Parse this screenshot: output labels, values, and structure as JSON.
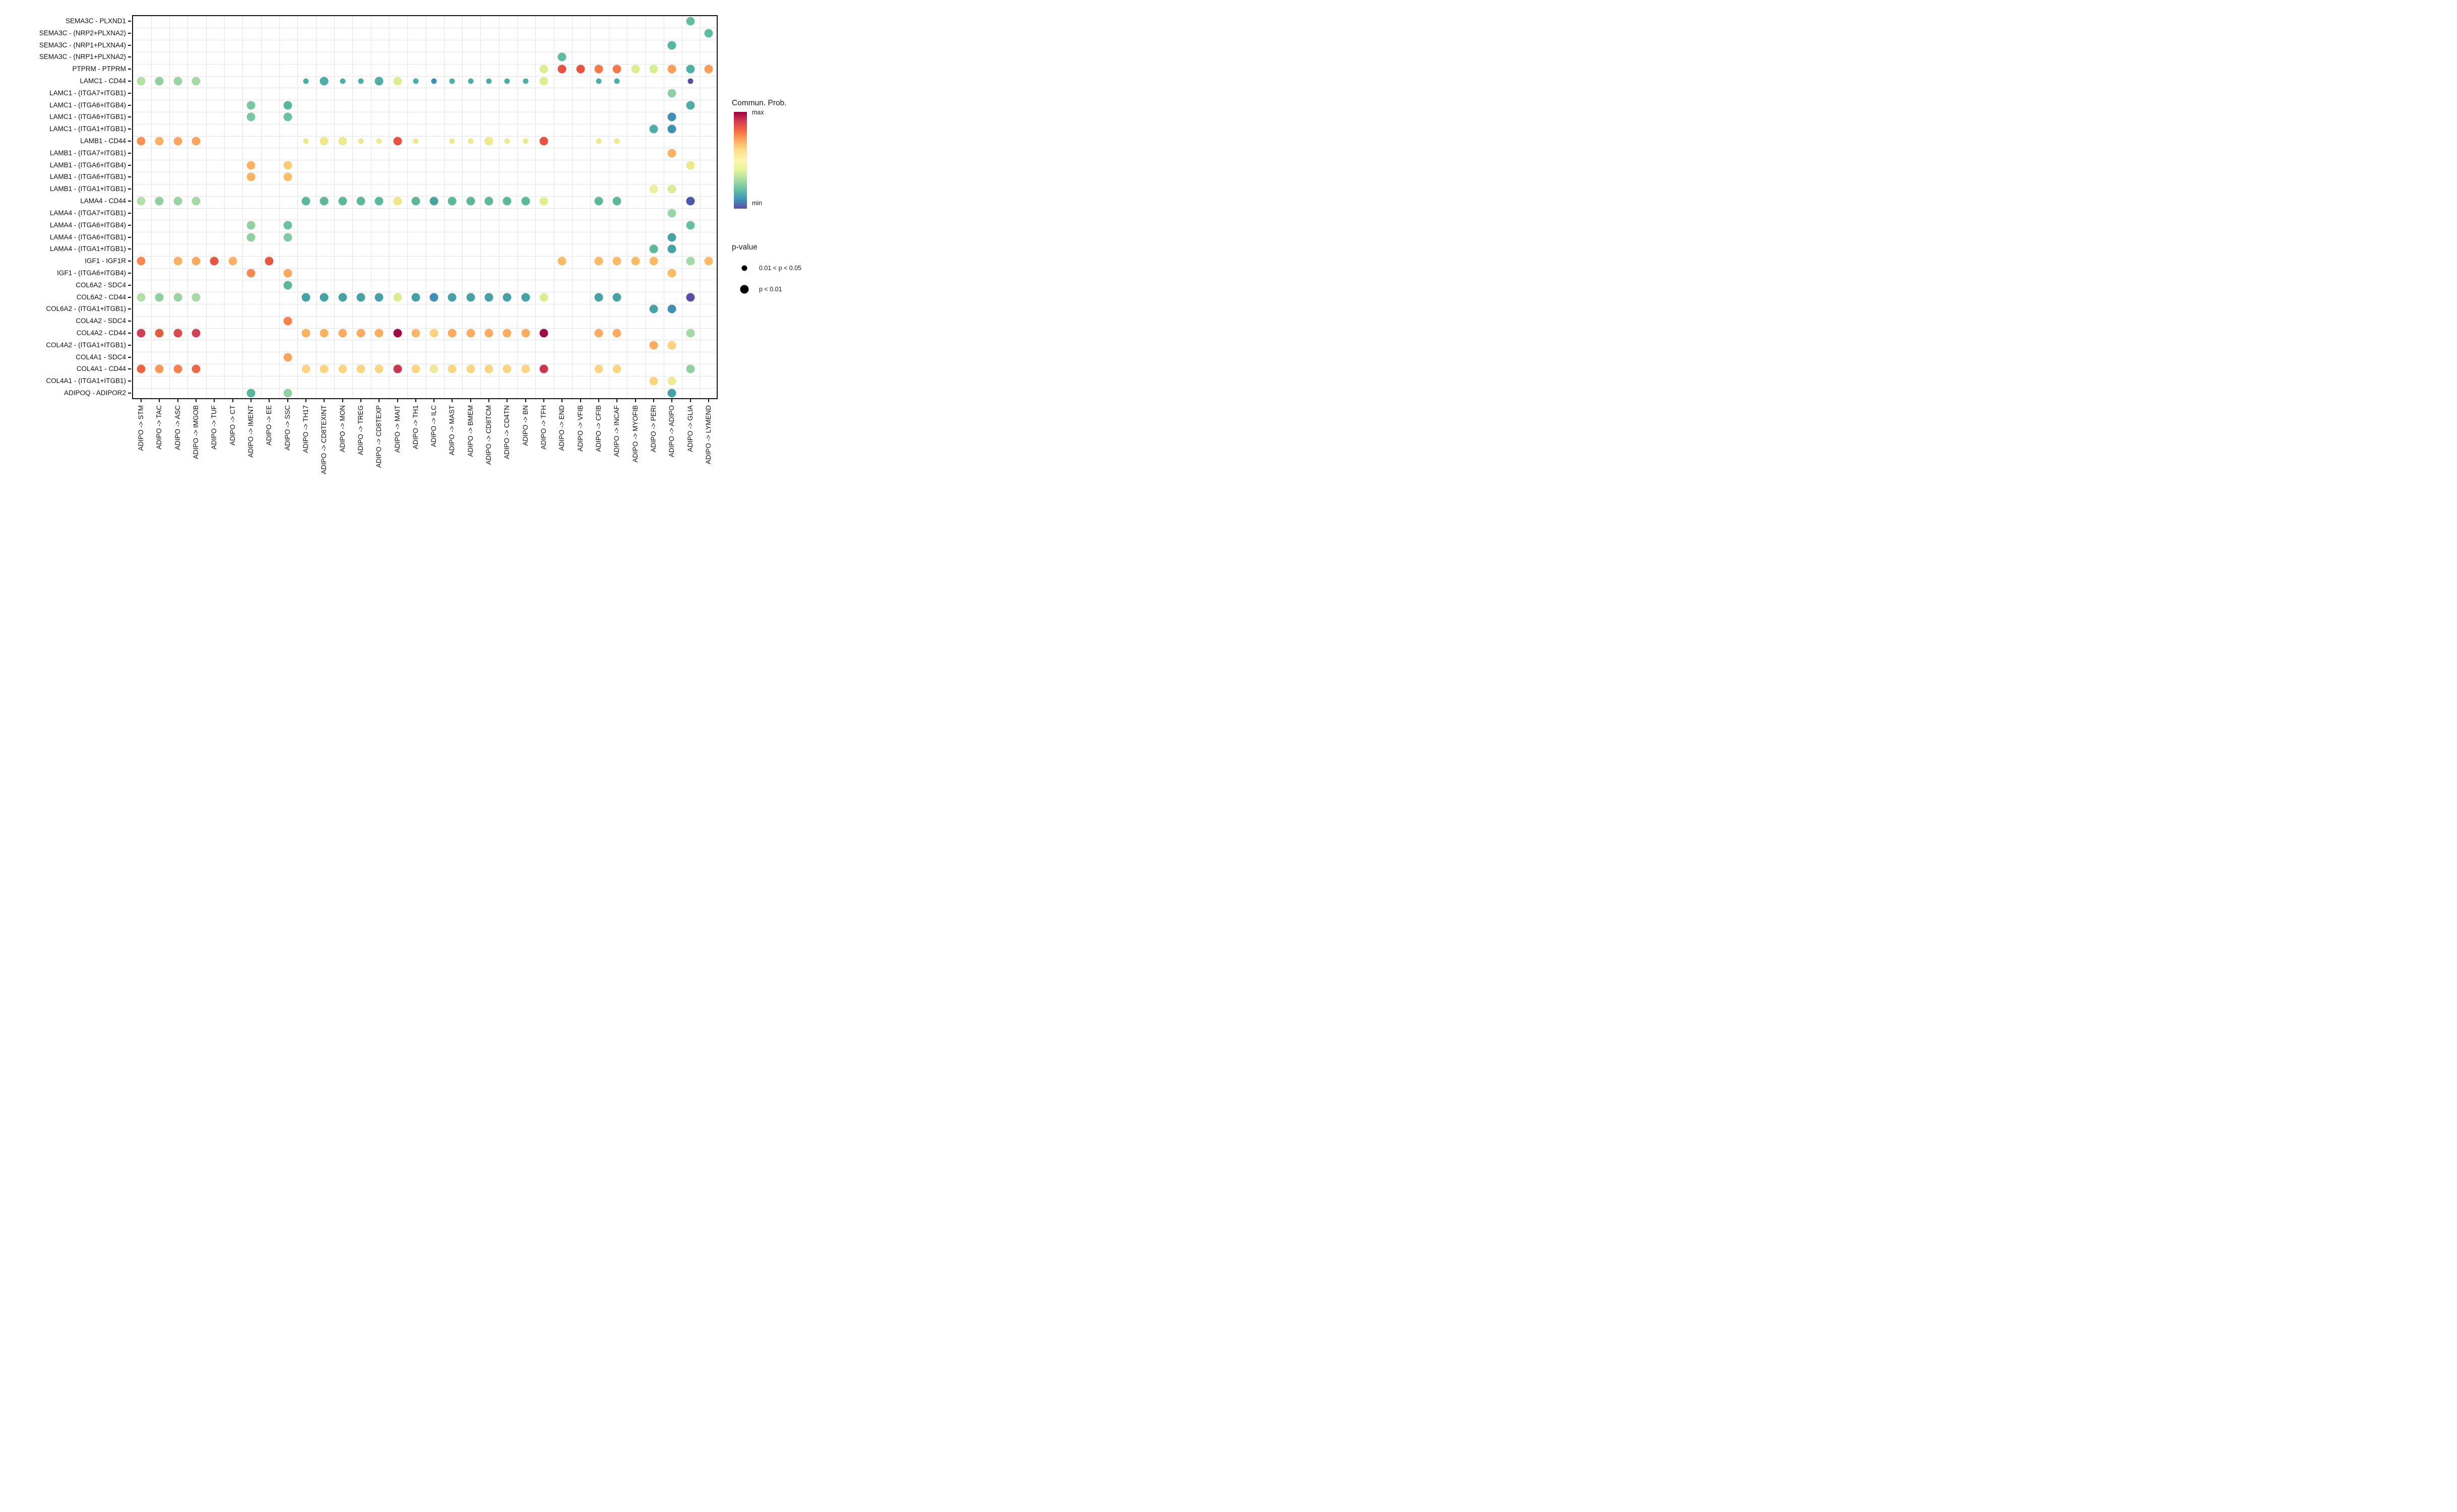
{
  "chart_data": {
    "type": "scatter",
    "subtype": "dotplot-bubble",
    "title": "",
    "xlabel": "",
    "ylabel": "",
    "grid": true,
    "x_tick_rotation": 90,
    "x_categories": [
      "ADIPO -> STM",
      "ADIPO -> TAC",
      "ADIPO -> ASC",
      "ADIPO -> IMGOB",
      "ADIPO -> TUF",
      "ADIPO -> CT",
      "ADIPO -> IMENT",
      "ADIPO -> EE",
      "ADIPO -> SSC",
      "ADIPO -> TH17",
      "ADIPO -> CD8TEXINT",
      "ADIPO -> MON",
      "ADIPO -> TREG",
      "ADIPO -> CD8TEXP",
      "ADIPO -> MAIT",
      "ADIPO -> TH1",
      "ADIPO -> ILC",
      "ADIPO -> MAST",
      "ADIPO -> BMEM",
      "ADIPO -> CD8TCM",
      "ADIPO -> CD4TN",
      "ADIPO -> BN",
      "ADIPO -> TFH",
      "ADIPO -> END",
      "ADIPO -> VFIB",
      "ADIPO -> CFIB",
      "ADIPO -> INCAF",
      "ADIPO -> MYOFIB",
      "ADIPO -> PERI",
      "ADIPO -> ADIPO",
      "ADIPO -> GLIA",
      "ADIPO -> LYMEND"
    ],
    "y_categories": [
      "SEMA3C - PLXND1",
      "SEMA3C - (NRP2+PLXNA2)",
      "SEMA3C - (NRP1+PLXNA4)",
      "SEMA3C - (NRP1+PLXNA2)",
      "PTPRM - PTPRM",
      "LAMC1 - CD44",
      "LAMC1 - (ITGA7+ITGB1)",
      "LAMC1 - (ITGA6+ITGB4)",
      "LAMC1 - (ITGA6+ITGB1)",
      "LAMC1 - (ITGA1+ITGB1)",
      "LAMB1 - CD44",
      "LAMB1 - (ITGA7+ITGB1)",
      "LAMB1 - (ITGA6+ITGB4)",
      "LAMB1 - (ITGA6+ITGB1)",
      "LAMB1 - (ITGA1+ITGB1)",
      "LAMA4 - CD44",
      "LAMA4 - (ITGA7+ITGB1)",
      "LAMA4 - (ITGA6+ITGB4)",
      "LAMA4 - (ITGA6+ITGB1)",
      "LAMA4 - (ITGA1+ITGB1)",
      "IGF1 - IGF1R",
      "IGF1 - (ITGA6+ITGB4)",
      "COL6A2 - SDC4",
      "COL6A2 - CD44",
      "COL6A2 - (ITGA1+ITGB1)",
      "COL4A2 - SDC4",
      "COL4A2 - CD44",
      "COL4A2 - (ITGA1+ITGB1)",
      "COL4A1 - SDC4",
      "COL4A1 - CD44",
      "COL4A1 - (ITGA1+ITGB1)",
      "ADIPOQ - ADIPOR2"
    ],
    "size_classes": {
      "1": "0.01 < p < 0.05",
      "2": "p < 0.01"
    },
    "color_encoding": "Commun. Prob. (min to max, Spectral reversed)",
    "dots": [
      [
        0,
        30,
        "#63BE9D",
        2
      ],
      [
        1,
        31,
        "#5FBCA0",
        2
      ],
      [
        2,
        29,
        "#57B69E",
        2
      ],
      [
        3,
        23,
        "#5FBCA2",
        2
      ],
      [
        4,
        22,
        "#DCEE91",
        2
      ],
      [
        4,
        23,
        "#E65340",
        2
      ],
      [
        4,
        24,
        "#E65340",
        2
      ],
      [
        4,
        25,
        "#F4794A",
        2
      ],
      [
        4,
        26,
        "#F4794A",
        2
      ],
      [
        4,
        27,
        "#DCEE91",
        2
      ],
      [
        4,
        28,
        "#D9ED92",
        2
      ],
      [
        4,
        29,
        "#FB9D58",
        2
      ],
      [
        4,
        30,
        "#4FAEA3",
        2
      ],
      [
        4,
        31,
        "#FB9D58",
        2
      ],
      [
        5,
        0,
        "#B4E0A5",
        2
      ],
      [
        5,
        1,
        "#90CF9F",
        2
      ],
      [
        5,
        2,
        "#99D4A2",
        2
      ],
      [
        5,
        3,
        "#A6DAA5",
        2
      ],
      [
        5,
        9,
        "#4FAEA3",
        1
      ],
      [
        5,
        10,
        "#4FAEA3",
        2
      ],
      [
        5,
        11,
        "#4FAEA3",
        1
      ],
      [
        5,
        12,
        "#4FAEA3",
        1
      ],
      [
        5,
        13,
        "#4FAEA3",
        2
      ],
      [
        5,
        14,
        "#DCEE91",
        2
      ],
      [
        5,
        15,
        "#4FAEA3",
        1
      ],
      [
        5,
        16,
        "#3F90B5",
        1
      ],
      [
        5,
        17,
        "#4FAEA3",
        1
      ],
      [
        5,
        18,
        "#4FAEA3",
        1
      ],
      [
        5,
        19,
        "#4FAEA3",
        1
      ],
      [
        5,
        20,
        "#4FAEA3",
        1
      ],
      [
        5,
        21,
        "#4FAEA3",
        1
      ],
      [
        5,
        22,
        "#DCEE91",
        2
      ],
      [
        5,
        25,
        "#4FAEA3",
        1
      ],
      [
        5,
        26,
        "#4FAEA3",
        1
      ],
      [
        5,
        30,
        "#5B4DA3",
        1
      ],
      [
        6,
        29,
        "#90CF9F",
        2
      ],
      [
        7,
        6,
        "#79C7A3",
        2
      ],
      [
        7,
        8,
        "#57B69E",
        2
      ],
      [
        7,
        30,
        "#4FAEA3",
        2
      ],
      [
        8,
        6,
        "#79C7A3",
        2
      ],
      [
        8,
        8,
        "#6CC2A0",
        2
      ],
      [
        8,
        29,
        "#3F90B5",
        2
      ],
      [
        9,
        28,
        "#4FAEA3",
        2
      ],
      [
        9,
        29,
        "#3F90B5",
        2
      ],
      [
        10,
        0,
        "#F79453",
        2
      ],
      [
        10,
        1,
        "#FBB164",
        2
      ],
      [
        10,
        2,
        "#FAA75D",
        2
      ],
      [
        10,
        3,
        "#FAA55C",
        2
      ],
      [
        10,
        9,
        "#EDE98C",
        1
      ],
      [
        10,
        10,
        "#EDE98C",
        2
      ],
      [
        10,
        11,
        "#EDE98C",
        2
      ],
      [
        10,
        12,
        "#EDE98C",
        1
      ],
      [
        10,
        13,
        "#EDE98C",
        1
      ],
      [
        10,
        14,
        "#E65340",
        2
      ],
      [
        10,
        15,
        "#EDE98C",
        1
      ],
      [
        10,
        17,
        "#EDE98C",
        1
      ],
      [
        10,
        18,
        "#EDE98C",
        1
      ],
      [
        10,
        19,
        "#EDE98C",
        2
      ],
      [
        10,
        20,
        "#EDE98C",
        1
      ],
      [
        10,
        21,
        "#EDE98C",
        1
      ],
      [
        10,
        22,
        "#E65340",
        2
      ],
      [
        10,
        25,
        "#EDE98C",
        1
      ],
      [
        10,
        26,
        "#EDE98C",
        1
      ],
      [
        11,
        29,
        "#FBB164",
        2
      ],
      [
        12,
        6,
        "#FBB164",
        2
      ],
      [
        12,
        8,
        "#FACD74",
        2
      ],
      [
        12,
        30,
        "#EDE98C",
        2
      ],
      [
        13,
        6,
        "#FBB164",
        2
      ],
      [
        13,
        8,
        "#FBBD68",
        2
      ],
      [
        14,
        28,
        "#EDEF9C",
        2
      ],
      [
        14,
        29,
        "#D7EC95",
        2
      ],
      [
        15,
        0,
        "#B4E0A5",
        2
      ],
      [
        15,
        1,
        "#90CF9F",
        2
      ],
      [
        15,
        2,
        "#99D4A2",
        2
      ],
      [
        15,
        3,
        "#A6DAA5",
        2
      ],
      [
        15,
        9,
        "#5BB89B",
        2
      ],
      [
        15,
        10,
        "#5BB89B",
        2
      ],
      [
        15,
        11,
        "#5BB89B",
        2
      ],
      [
        15,
        12,
        "#5BB89B",
        2
      ],
      [
        15,
        13,
        "#5BB89B",
        2
      ],
      [
        15,
        14,
        "#EDE88A",
        2
      ],
      [
        15,
        15,
        "#5BB89B",
        2
      ],
      [
        15,
        16,
        "#47A2A2",
        2
      ],
      [
        15,
        17,
        "#5BB89B",
        2
      ],
      [
        15,
        18,
        "#5BB89B",
        2
      ],
      [
        15,
        19,
        "#5BB89B",
        2
      ],
      [
        15,
        20,
        "#5BB89B",
        2
      ],
      [
        15,
        21,
        "#5BB89B",
        2
      ],
      [
        15,
        22,
        "#E3EE8D",
        2
      ],
      [
        15,
        25,
        "#5BB89B",
        2
      ],
      [
        15,
        26,
        "#5BB89B",
        2
      ],
      [
        15,
        30,
        "#4A58A8",
        2
      ],
      [
        16,
        29,
        "#9AD6A5",
        2
      ],
      [
        17,
        6,
        "#90D0A1",
        2
      ],
      [
        17,
        8,
        "#6CC2A0",
        2
      ],
      [
        17,
        30,
        "#66BF9F",
        2
      ],
      [
        18,
        6,
        "#90D0A1",
        2
      ],
      [
        18,
        8,
        "#80CBA3",
        2
      ],
      [
        18,
        29,
        "#47A2A6",
        2
      ],
      [
        19,
        28,
        "#5BB89B",
        2
      ],
      [
        19,
        29,
        "#47A2A6",
        2
      ],
      [
        20,
        0,
        "#F68B51",
        2
      ],
      [
        20,
        2,
        "#FBB164",
        2
      ],
      [
        20,
        3,
        "#FAA85E",
        2
      ],
      [
        20,
        4,
        "#E65740",
        2
      ],
      [
        20,
        5,
        "#FBB164",
        2
      ],
      [
        20,
        7,
        "#E65740",
        2
      ],
      [
        20,
        23,
        "#FBBA66",
        2
      ],
      [
        20,
        25,
        "#FBBA66",
        2
      ],
      [
        20,
        26,
        "#FBBA66",
        2
      ],
      [
        20,
        27,
        "#FBBA66",
        2
      ],
      [
        20,
        28,
        "#FBBA66",
        2
      ],
      [
        20,
        30,
        "#A2D9A4",
        2
      ],
      [
        20,
        31,
        "#FBBA66",
        2
      ],
      [
        21,
        6,
        "#F68B51",
        2
      ],
      [
        21,
        8,
        "#FAA85E",
        2
      ],
      [
        21,
        29,
        "#FBBA66",
        2
      ],
      [
        22,
        8,
        "#5BB89B",
        2
      ],
      [
        23,
        0,
        "#B4E0A5",
        2
      ],
      [
        23,
        1,
        "#90CF9F",
        2
      ],
      [
        23,
        2,
        "#99D4A2",
        2
      ],
      [
        23,
        3,
        "#A6DAA5",
        2
      ],
      [
        23,
        9,
        "#47A2A6",
        2
      ],
      [
        23,
        10,
        "#47A2A6",
        2
      ],
      [
        23,
        11,
        "#47A2A6",
        2
      ],
      [
        23,
        12,
        "#47A2A6",
        2
      ],
      [
        23,
        13,
        "#47A2A6",
        2
      ],
      [
        23,
        14,
        "#D9ED92",
        2
      ],
      [
        23,
        15,
        "#47A2A6",
        2
      ],
      [
        23,
        16,
        "#3F90B5",
        2
      ],
      [
        23,
        17,
        "#47A2A6",
        2
      ],
      [
        23,
        18,
        "#47A2A6",
        2
      ],
      [
        23,
        19,
        "#47A2A6",
        2
      ],
      [
        23,
        20,
        "#47A2A6",
        2
      ],
      [
        23,
        21,
        "#47A2A6",
        2
      ],
      [
        23,
        22,
        "#D9ED92",
        2
      ],
      [
        23,
        25,
        "#47A2A6",
        2
      ],
      [
        23,
        26,
        "#47A2A6",
        2
      ],
      [
        23,
        30,
        "#584FA5",
        2
      ],
      [
        24,
        28,
        "#47A2A6",
        2
      ],
      [
        24,
        29,
        "#3F90B5",
        2
      ],
      [
        25,
        8,
        "#F5824E",
        2
      ],
      [
        26,
        0,
        "#CC4256",
        2
      ],
      [
        26,
        1,
        "#E45B44",
        2
      ],
      [
        26,
        2,
        "#DB4A4C",
        2
      ],
      [
        26,
        3,
        "#CE4454",
        2
      ],
      [
        26,
        9,
        "#FBB164",
        2
      ],
      [
        26,
        10,
        "#FBB164",
        2
      ],
      [
        26,
        11,
        "#FBAC60",
        2
      ],
      [
        26,
        12,
        "#FBAC60",
        2
      ],
      [
        26,
        13,
        "#FBAC60",
        2
      ],
      [
        26,
        14,
        "#9E0B45",
        2
      ],
      [
        26,
        15,
        "#FBB768",
        2
      ],
      [
        26,
        16,
        "#FCD27C",
        2
      ],
      [
        26,
        17,
        "#FBAC60",
        2
      ],
      [
        26,
        18,
        "#FBAC60",
        2
      ],
      [
        26,
        19,
        "#FBAC60",
        2
      ],
      [
        26,
        20,
        "#FBAC60",
        2
      ],
      [
        26,
        21,
        "#FBAC60",
        2
      ],
      [
        26,
        22,
        "#9E0B45",
        2
      ],
      [
        26,
        25,
        "#FBAC60",
        2
      ],
      [
        26,
        26,
        "#FBAC60",
        2
      ],
      [
        26,
        30,
        "#A2D9A4",
        2
      ],
      [
        27,
        28,
        "#FBAC60",
        2
      ],
      [
        27,
        29,
        "#FCD27C",
        2
      ],
      [
        28,
        8,
        "#FBA55C",
        2
      ],
      [
        29,
        0,
        "#EE6245",
        2
      ],
      [
        29,
        1,
        "#F9985A",
        2
      ],
      [
        29,
        2,
        "#F58250",
        2
      ],
      [
        29,
        3,
        "#EE6848",
        2
      ],
      [
        29,
        9,
        "#FBD584",
        2
      ],
      [
        29,
        10,
        "#FBD584",
        2
      ],
      [
        29,
        11,
        "#FBD584",
        2
      ],
      [
        29,
        12,
        "#FBD584",
        2
      ],
      [
        29,
        13,
        "#FBD584",
        2
      ],
      [
        29,
        14,
        "#C8374F",
        2
      ],
      [
        29,
        15,
        "#FBD584",
        2
      ],
      [
        29,
        16,
        "#EEE9A0",
        2
      ],
      [
        29,
        17,
        "#FBD584",
        2
      ],
      [
        29,
        18,
        "#FBD584",
        2
      ],
      [
        29,
        19,
        "#FBD584",
        2
      ],
      [
        29,
        20,
        "#FBD584",
        2
      ],
      [
        29,
        21,
        "#FBD584",
        2
      ],
      [
        29,
        22,
        "#C8374F",
        2
      ],
      [
        29,
        25,
        "#FBD584",
        2
      ],
      [
        29,
        26,
        "#FBD584",
        2
      ],
      [
        29,
        30,
        "#90D0A1",
        2
      ],
      [
        30,
        28,
        "#FBD584",
        2
      ],
      [
        30,
        29,
        "#EDEB95",
        2
      ],
      [
        31,
        6,
        "#57B69E",
        2
      ],
      [
        31,
        8,
        "#90D0A1",
        2
      ],
      [
        31,
        29,
        "#47A2A6",
        2
      ]
    ]
  },
  "legend": {
    "color_title": "Commun. Prob.",
    "max_label": "max",
    "min_label": "min",
    "gradient_stops": [
      "#9E0142",
      "#D53E4F",
      "#F46D43",
      "#FDAE61",
      "#FEE08B",
      "#FEF5AF",
      "#E6F598",
      "#ABDDA4",
      "#66C2A5",
      "#3F96B7",
      "#5E4FA2"
    ],
    "pvalue_title": "p-value",
    "pvalue_items": [
      {
        "label": "0.01 < p < 0.05",
        "size": "small"
      },
      {
        "label": "p < 0.01",
        "size": "large"
      }
    ]
  }
}
